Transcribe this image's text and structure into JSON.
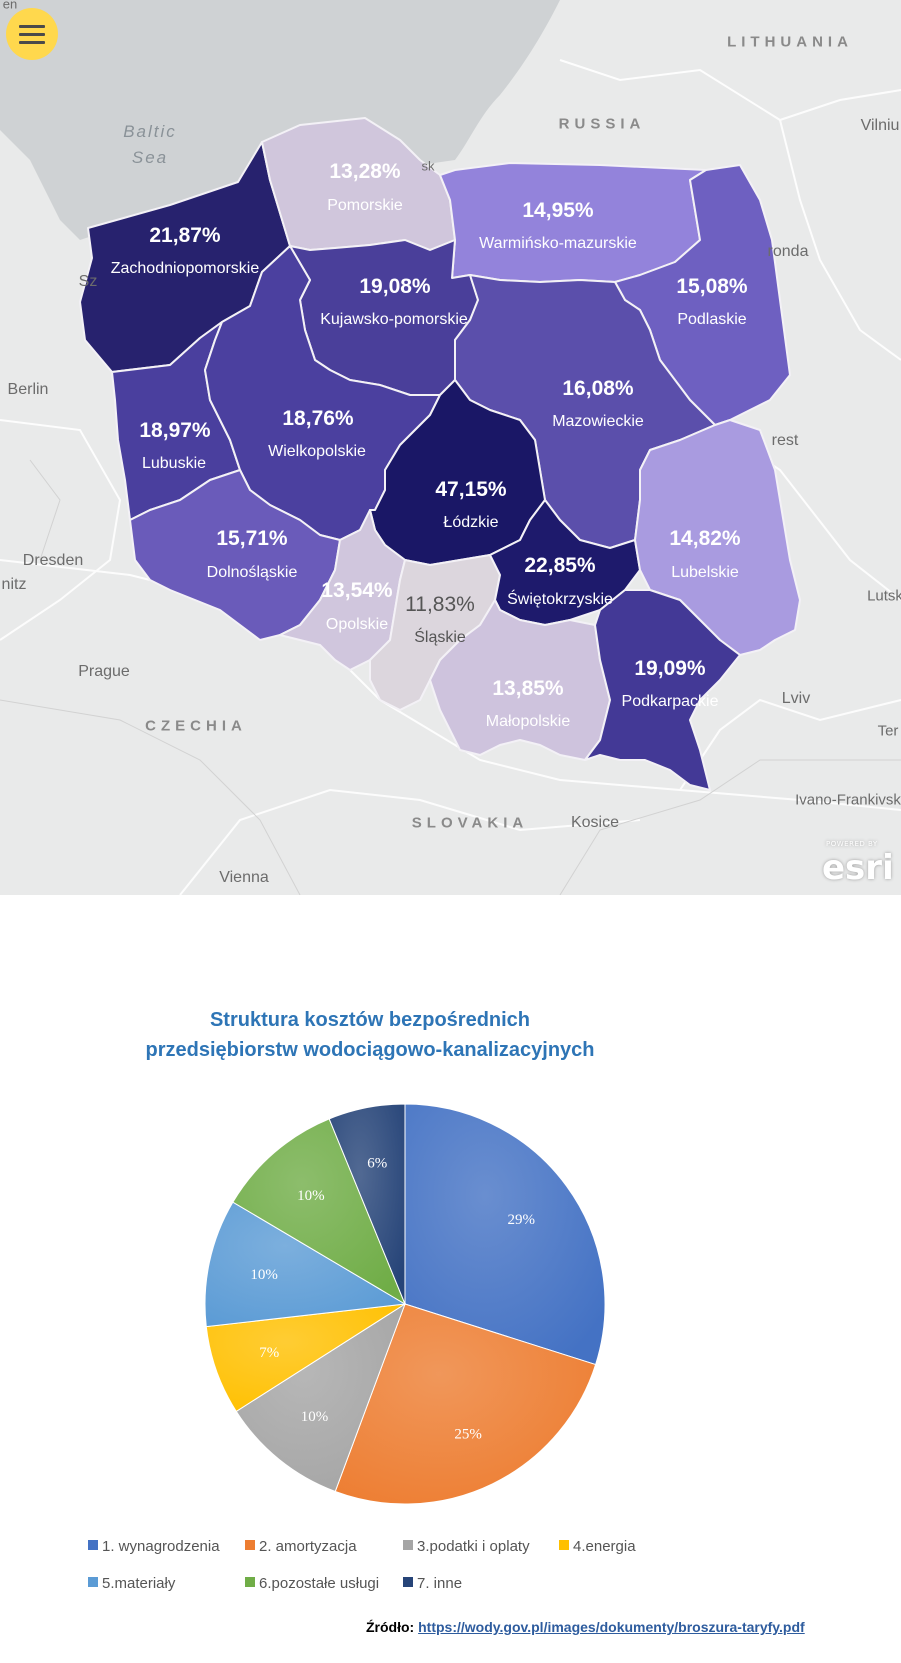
{
  "map": {
    "menu_icon": "hamburger-menu-icon",
    "sea_label": "Baltic\nSea",
    "countries": [
      "LITHUANIA",
      "RUSSIA",
      "CZECHIA",
      "SLOVAKIA"
    ],
    "cities": [
      "Vilniu",
      "Berlin",
      "Dresden",
      "Prague",
      "Vienna",
      "Kosice",
      "Lviv",
      "Ivano-Frankivsk",
      "Lutsk",
      "Ter",
      "Sz",
      "nitz",
      "ronda",
      "rest",
      "sk",
      "en"
    ],
    "attribution": "esri",
    "attribution_small": "POWERED BY",
    "regions": [
      {
        "name": "Zachodniopomorskie",
        "value": "21,87%",
        "color": "#27226e"
      },
      {
        "name": "Pomorskie",
        "value": "13,28%",
        "color": "#d0c6dc"
      },
      {
        "name": "Warmińsko-mazurskie",
        "value": "14,95%",
        "color": "#9383db"
      },
      {
        "name": "Podlaskie",
        "value": "15,08%",
        "color": "#6e60c1"
      },
      {
        "name": "Kujawsko-pomorskie",
        "value": "19,08%",
        "color": "#4a3f9a"
      },
      {
        "name": "Mazowieckie",
        "value": "16,08%",
        "color": "#5b4fab"
      },
      {
        "name": "Lubuskie",
        "value": "18,97%",
        "color": "#4a3f9e"
      },
      {
        "name": "Wielkopolskie",
        "value": "18,76%",
        "color": "#4b409f"
      },
      {
        "name": "Łódzkie",
        "value": "47,15%",
        "color": "#1a1766"
      },
      {
        "name": "Dolnośląskie",
        "value": "15,71%",
        "color": "#6a5bba"
      },
      {
        "name": "Opolskie",
        "value": "13,54%",
        "color": "#d0c6dd"
      },
      {
        "name": "Śląskie",
        "value": "11,83%",
        "color": "#dcd6dd"
      },
      {
        "name": "Świętokrzyskie",
        "value": "22,85%",
        "color": "#1e1a6c"
      },
      {
        "name": "Lubelskie",
        "value": "14,82%",
        "color": "#a99be0"
      },
      {
        "name": "Małopolskie",
        "value": "13,85%",
        "color": "#cec3dd"
      },
      {
        "name": "Podkarpackie",
        "value": "19,09%",
        "color": "#433996"
      }
    ]
  },
  "chart_data": {
    "type": "pie",
    "title": "Struktura kosztów bezpośrednich\nprzedsiębiorstw wodociągowo-kanalizacyjnych",
    "categories": [
      "1. wynagrodzenia",
      "2. amortyzacja",
      "3.podatki i oplaty",
      "4.energia",
      "5.materiały",
      "6.pozostałe usługi",
      "7. inne"
    ],
    "values": [
      29,
      25,
      10,
      7,
      10,
      10,
      6
    ],
    "labels": [
      "29%",
      "25%",
      "10%",
      "7%",
      "10%",
      "10%",
      "6%"
    ],
    "colors": [
      "#4472c4",
      "#ed7d31",
      "#a5a5a5",
      "#ffc000",
      "#5b9bd5",
      "#70ad47",
      "#264478"
    ],
    "legend_position": "bottom"
  },
  "source": {
    "label": "Źródło:",
    "url_text": "https://wody.gov.pl/images/dokumenty/broszura-taryfy.pdf"
  }
}
